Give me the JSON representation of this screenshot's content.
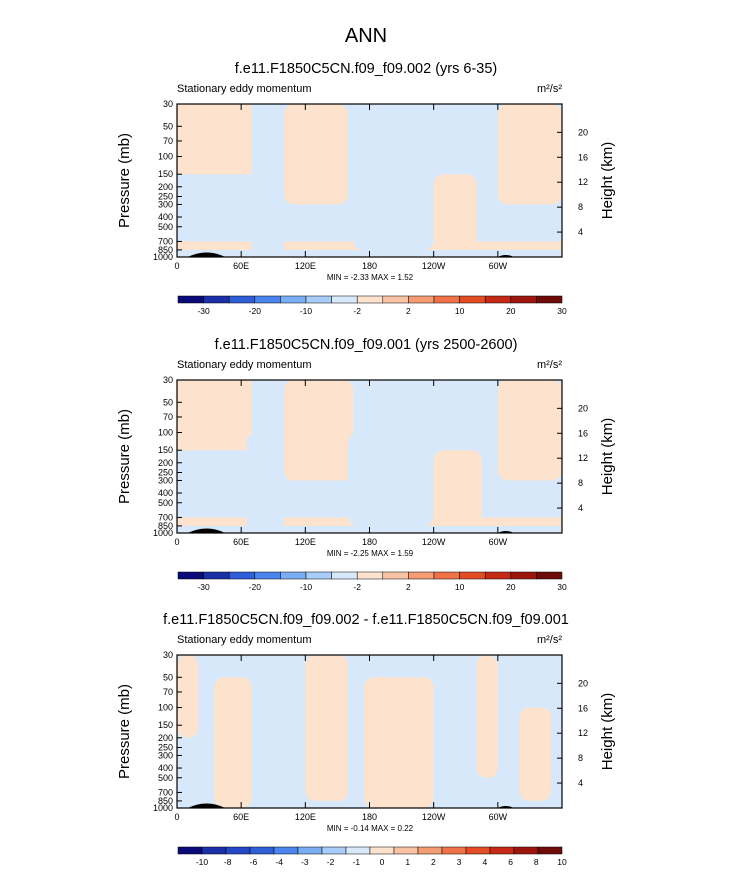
{
  "page_title": "ANN",
  "colors": {
    "pos_fill": "#fde3cd",
    "neg_fill": "#d7e8fa",
    "terrain": "#000000"
  },
  "chart_data": [
    {
      "type": "heatmap",
      "title": "f.e11.F1850C5CN.f09_f09.002 (yrs 6-35)",
      "subtitle_left": "Stationary eddy momentum",
      "units": "m²/s²",
      "ylabel": "Pressure (mb)",
      "ylabel_right": "Height (km)",
      "x_ticks": [
        "0",
        "60E",
        "120E",
        "180",
        "120W",
        "60W"
      ],
      "xlim": [
        0,
        360
      ],
      "y_ticks": [
        "30",
        "50",
        "70",
        "100",
        "150",
        "200",
        "250",
        "300",
        "400",
        "500",
        "700",
        "850",
        "1000"
      ],
      "y_right_ticks": [
        "20",
        "16",
        "12",
        "8",
        "4"
      ],
      "min_label": "MIN = ",
      "min": "-2.33",
      "max_label": "MAX = ",
      "max": "1.52",
      "colorbar_labels": [
        "-30",
        "-20",
        "-10",
        "-2",
        "2",
        "10",
        "20",
        "30"
      ],
      "colorbar_colors": [
        "#0a0a78",
        "#1b2fa8",
        "#2f5fd6",
        "#4a84ec",
        "#7aaef4",
        "#a7cdf8",
        "#d7e8fa",
        "#fde3cd",
        "#f8c3a5",
        "#f49c72",
        "#ef7346",
        "#e24d24",
        "#c62a16",
        "#9c160d",
        "#6e0a08"
      ],
      "regions": [
        {
          "sign": "neg",
          "lon": [
            70,
            100
          ],
          "p": [
            100,
            1000
          ]
        },
        {
          "sign": "pos",
          "lon": [
            100,
            160
          ],
          "p": [
            30,
            300
          ]
        },
        {
          "sign": "neg",
          "lon": [
            165,
            240
          ],
          "p": [
            100,
            850
          ]
        },
        {
          "sign": "pos",
          "lon": [
            240,
            280
          ],
          "p": [
            150,
            850
          ]
        },
        {
          "sign": "pos",
          "lon": [
            300,
            360
          ],
          "p": [
            30,
            300
          ]
        }
      ]
    },
    {
      "type": "heatmap",
      "title": "f.e11.F1850C5CN.f09_f09.001 (yrs 2500-2600)",
      "subtitle_left": "Stationary eddy momentum",
      "units": "m²/s²",
      "ylabel": "Pressure (mb)",
      "ylabel_right": "Height (km)",
      "x_ticks": [
        "0",
        "60E",
        "120E",
        "180",
        "120W",
        "60W"
      ],
      "xlim": [
        0,
        360
      ],
      "y_ticks": [
        "30",
        "50",
        "70",
        "100",
        "150",
        "200",
        "250",
        "300",
        "400",
        "500",
        "700",
        "850",
        "1000"
      ],
      "y_right_ticks": [
        "20",
        "16",
        "12",
        "8",
        "4"
      ],
      "min_label": "MIN = ",
      "min": "-2.25",
      "max_label": "MAX = ",
      "max": "1.59",
      "colorbar_labels": [
        "-30",
        "-20",
        "-10",
        "-2",
        "2",
        "10",
        "20",
        "30"
      ],
      "colorbar_colors": [
        "#0a0a78",
        "#1b2fa8",
        "#2f5fd6",
        "#4a84ec",
        "#7aaef4",
        "#a7cdf8",
        "#d7e8fa",
        "#fde3cd",
        "#f8c3a5",
        "#f49c72",
        "#ef7346",
        "#e24d24",
        "#c62a16",
        "#9c160d",
        "#6e0a08"
      ],
      "regions": [
        {
          "sign": "neg",
          "lon": [
            65,
            100
          ],
          "p": [
            100,
            1000
          ]
        },
        {
          "sign": "pos",
          "lon": [
            100,
            165
          ],
          "p": [
            30,
            300
          ]
        },
        {
          "sign": "neg",
          "lon": [
            160,
            240
          ],
          "p": [
            100,
            850
          ]
        },
        {
          "sign": "pos",
          "lon": [
            240,
            285
          ],
          "p": [
            150,
            850
          ]
        },
        {
          "sign": "pos",
          "lon": [
            300,
            360
          ],
          "p": [
            30,
            300
          ]
        }
      ]
    },
    {
      "type": "heatmap",
      "title": "f.e11.F1850C5CN.f09_f09.002 - f.e11.F1850C5CN.f09_f09.001",
      "subtitle_left": "Stationary eddy momentum",
      "units": "m²/s²",
      "ylabel": "Pressure (mb)",
      "ylabel_right": "Height (km)",
      "x_ticks": [
        "0",
        "60E",
        "120E",
        "180",
        "120W",
        "60W"
      ],
      "xlim": [
        0,
        360
      ],
      "y_ticks": [
        "30",
        "50",
        "70",
        "100",
        "150",
        "200",
        "250",
        "300",
        "400",
        "500",
        "700",
        "850",
        "1000"
      ],
      "y_right_ticks": [
        "20",
        "16",
        "12",
        "8",
        "4"
      ],
      "min_label": "MIN = ",
      "min": "-0.14",
      "max_label": "MAX = ",
      "max": "0.22",
      "colorbar_labels": [
        "-10",
        "-8",
        "-6",
        "-4",
        "-3",
        "-2",
        "-1",
        "0",
        "1",
        "2",
        "3",
        "4",
        "6",
        "8",
        "10"
      ],
      "colorbar_colors": [
        "#0a0a78",
        "#1b2fa8",
        "#2548c4",
        "#2f5fd6",
        "#4a84ec",
        "#7aaef4",
        "#a7cdf8",
        "#d7e8fa",
        "#fde3cd",
        "#f8c3a5",
        "#f49c72",
        "#ef7346",
        "#e24d24",
        "#c62a16",
        "#9c160d",
        "#6e0a08"
      ],
      "regions": [
        {
          "sign": "pos",
          "lon": [
            0,
            20
          ],
          "p": [
            30,
            200
          ]
        },
        {
          "sign": "pos",
          "lon": [
            35,
            70
          ],
          "p": [
            50,
            1000
          ]
        },
        {
          "sign": "pos",
          "lon": [
            120,
            160
          ],
          "p": [
            30,
            850
          ]
        },
        {
          "sign": "pos",
          "lon": [
            175,
            240
          ],
          "p": [
            50,
            1000
          ]
        },
        {
          "sign": "pos",
          "lon": [
            280,
            300
          ],
          "p": [
            30,
            500
          ]
        },
        {
          "sign": "pos",
          "lon": [
            320,
            350
          ],
          "p": [
            100,
            850
          ]
        }
      ]
    }
  ]
}
